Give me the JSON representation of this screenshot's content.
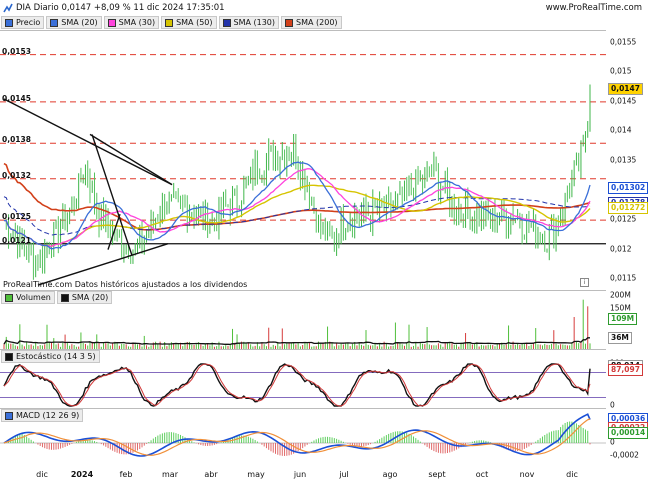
{
  "header": {
    "title": "DIA Diario 0,0147 +8,09 % 11 dic 2024 17:35:01",
    "site": "www.ProRealTime.com"
  },
  "price_legend": [
    {
      "label": "Precio",
      "color": "#3a6fd8"
    },
    {
      "label": "SMA (20)",
      "color": "#3a6fd8"
    },
    {
      "label": "SMA (30)",
      "color": "#ff44dd"
    },
    {
      "label": "SMA (50)",
      "color": "#d6c400"
    },
    {
      "label": "SMA (130)",
      "color": "#2233aa"
    },
    {
      "label": "SMA (200)",
      "color": "#d2401a"
    }
  ],
  "price_panel": {
    "level_labels": [
      "0,0153",
      "0,0145",
      "0,0138",
      "0,0132",
      "0,0125",
      "0,0121"
    ],
    "axis_ticks": [
      "0,0155",
      "0,015",
      "0,0145",
      "0,014",
      "0,0135",
      "0,013",
      "0,0125",
      "0,012",
      "0,0115"
    ],
    "tags": [
      {
        "text": "0,0147",
        "color": "#111111",
        "bg": "#ffd200"
      },
      {
        "text": "0,01302",
        "color": "#1a4fd6",
        "bg": "#ffffff"
      },
      {
        "text": "0,01278",
        "color": "#2233aa",
        "bg": "#ffffff"
      },
      {
        "text": "0,01272",
        "color": "#d6c400",
        "bg": "#ffffff"
      }
    ],
    "note": "ProRealTime.com  Datos históricos ajustados a los dividendos",
    "info_icon": "i"
  },
  "volume_panel": {
    "legend": [
      {
        "label": "Volumen",
        "color": "#4fbf3a"
      },
      {
        "label": "SMA (20)",
        "color": "#111111"
      }
    ],
    "axis_ticks": [
      "200M",
      "150M"
    ],
    "tags": [
      {
        "text": "109M",
        "color": "#2e9b2e",
        "bg": "#ffffff"
      },
      {
        "text": "36M",
        "color": "#111111",
        "bg": "#ffffff"
      }
    ]
  },
  "stoch_panel": {
    "legend": [
      {
        "label": "Estocástico (14 3 5)",
        "color": "#111111"
      }
    ],
    "axis_ticks": [
      "100",
      "0"
    ],
    "tags": [
      {
        "text": "88,914",
        "color": "#111111",
        "bg": "#ffffff"
      },
      {
        "text": "87,097",
        "color": "#d23a3a",
        "bg": "#ffffff"
      }
    ]
  },
  "macd_panel": {
    "legend": [
      {
        "label": "MACD (12 26 9)",
        "color": "#3a6fd8"
      }
    ],
    "axis_ticks": [
      "0",
      "-0,0002"
    ],
    "tags": [
      {
        "text": "0,00036",
        "color": "#1a4fd6",
        "bg": "#ffffff"
      },
      {
        "text": "0,00022",
        "color": "#d23a3a",
        "bg": "#ffffff"
      },
      {
        "text": "0,00014",
        "color": "#2e9b2e",
        "bg": "#ffffff"
      }
    ]
  },
  "months": [
    "dic",
    "2024",
    "feb",
    "mar",
    "abr",
    "may",
    "jun",
    "jul",
    "ago",
    "sept",
    "oct",
    "nov",
    "dic"
  ]
}
